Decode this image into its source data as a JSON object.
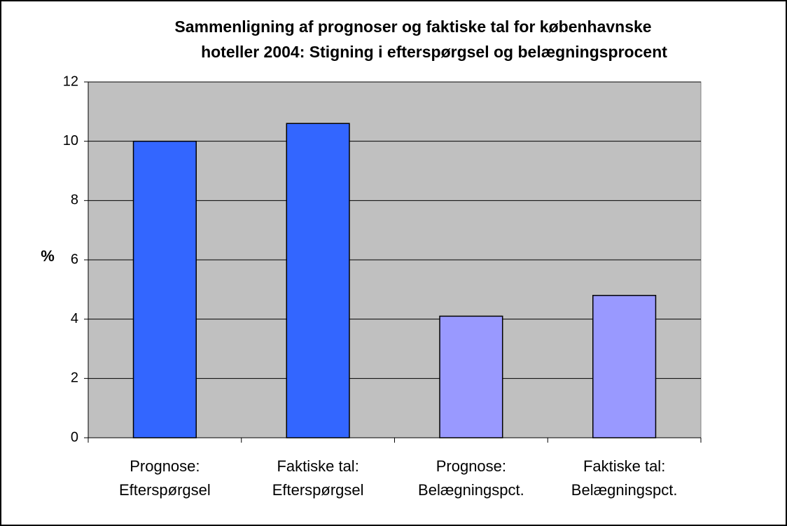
{
  "chart_data": {
    "type": "bar",
    "title": [
      "Sammenligning af prognoser og faktiske tal for københavnske",
      "hoteller 2004: Stigning i efterspørgsel og belægningsprocent"
    ],
    "y_label": "%",
    "categories": [
      [
        "Prognose:",
        "Efterspørgsel"
      ],
      [
        "Faktiske tal:",
        "Efterspørgsel"
      ],
      [
        "Prognose:",
        "Belægningspct."
      ],
      [
        "Faktiske tal:",
        "Belægningspct."
      ]
    ],
    "values": [
      10,
      10.6,
      4.1,
      4.8
    ],
    "colors": [
      "#3366ff",
      "#3366ff",
      "#9999ff",
      "#9999ff"
    ],
    "ylim": [
      0,
      12
    ],
    "yticks": [
      0,
      2,
      4,
      6,
      8,
      10,
      12
    ],
    "grid": true
  }
}
